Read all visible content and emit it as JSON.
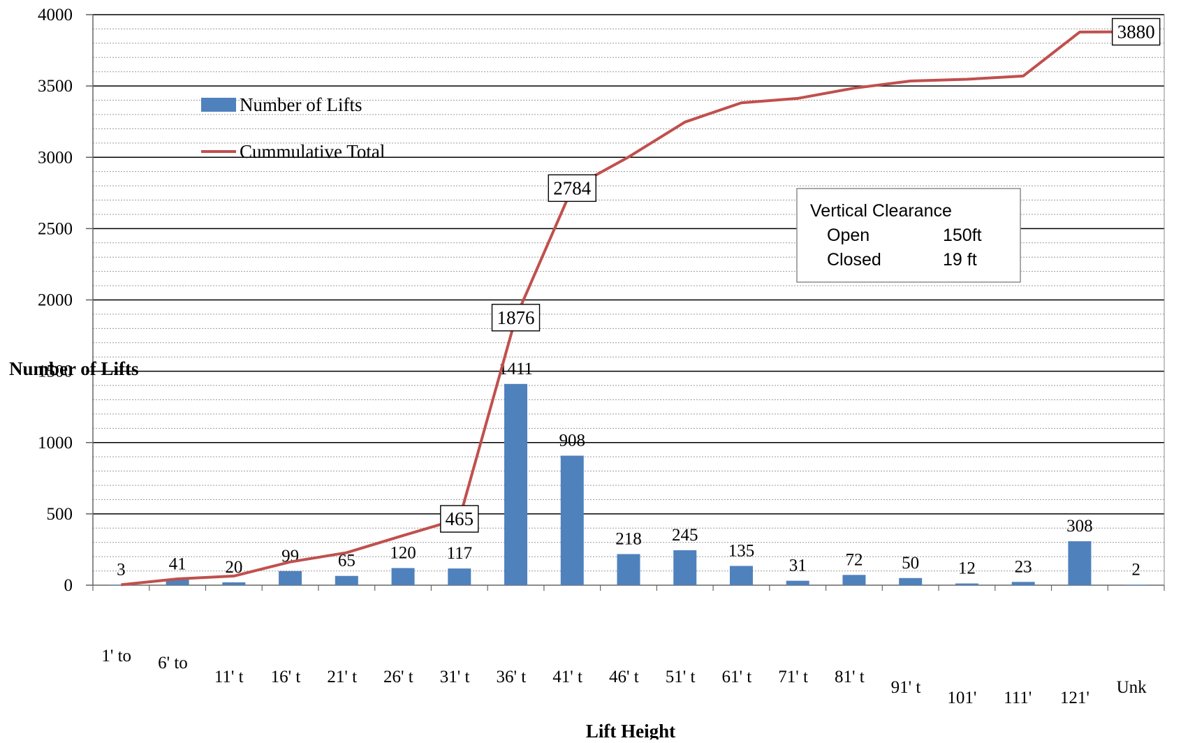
{
  "chart_data": {
    "type": "bar",
    "title": "",
    "xlabel": "Lift Height",
    "ylabel": "Number of Lifts",
    "ylim": [
      0,
      4000
    ],
    "ytick_step": 500,
    "yticks": [
      "0",
      "500",
      "1000",
      "1500",
      "2000",
      "2500",
      "3000",
      "3500",
      "4000"
    ],
    "grid": true,
    "legend_position": "top-left",
    "categories": [
      "1' to",
      "6' to",
      "11' t",
      "16' t",
      "21' t",
      "26' t",
      "31' t",
      "36' t",
      "41' t",
      "46' t",
      "51' t",
      "61' t",
      "71' t",
      "81' t",
      "91' t",
      "101'",
      "111'",
      "121'",
      "Unk"
    ],
    "series": [
      {
        "name": "Number of Lifts",
        "kind": "bar",
        "color": "#4f81bd",
        "values": [
          3,
          41,
          20,
          99,
          65,
          120,
          117,
          1411,
          908,
          218,
          245,
          135,
          31,
          72,
          50,
          12,
          23,
          308,
          2
        ],
        "labels": [
          "3",
          "41",
          "20",
          "99",
          "65",
          "120",
          "117",
          "1411",
          "908",
          "218",
          "245",
          "135",
          "31",
          "72",
          "50",
          "12",
          "23",
          "308",
          "2"
        ]
      },
      {
        "name": "Cummulative Total",
        "kind": "line",
        "color": "#c0504d",
        "values": [
          3,
          44,
          64,
          163,
          228,
          348,
          465,
          1876,
          2784,
          3002,
          3247,
          3382,
          3413,
          3485,
          3535,
          3547,
          3570,
          3878,
          3880
        ],
        "labeled_points": [
          {
            "index": 6,
            "label": "465"
          },
          {
            "index": 7,
            "label": "1876"
          },
          {
            "index": 8,
            "label": "2784"
          },
          {
            "index": 18,
            "label": "3880"
          }
        ]
      }
    ],
    "annotation": {
      "title": "Vertical Clearance",
      "rows": [
        {
          "name": "Open",
          "value": "150ft"
        },
        {
          "name": "Closed",
          "value": "19 ft"
        }
      ]
    }
  }
}
